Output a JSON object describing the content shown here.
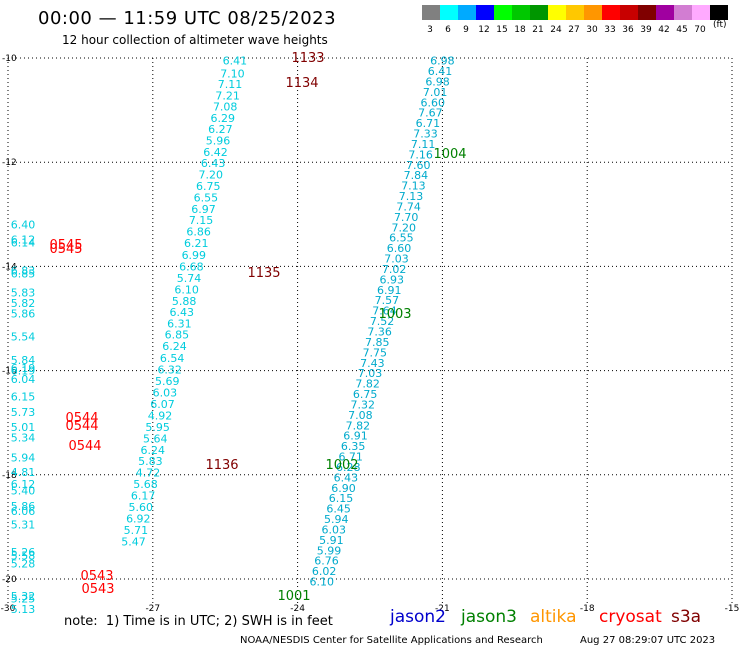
{
  "header": {
    "title": "00:00 — 11:59 UTC 08/25/2023",
    "subtitle": "12 hour collection of altimeter wave heights"
  },
  "legend": {
    "unit": "(ft)",
    "bins": [
      {
        "label": "3",
        "color": "#808080"
      },
      {
        "label": "6",
        "color": "#00ffff"
      },
      {
        "label": "9",
        "color": "#00aaff"
      },
      {
        "label": "12",
        "color": "#0000ff"
      },
      {
        "label": "15",
        "color": "#00ff00"
      },
      {
        "label": "18",
        "color": "#00c800"
      },
      {
        "label": "21",
        "color": "#009600"
      },
      {
        "label": "24",
        "color": "#ffff00"
      },
      {
        "label": "27",
        "color": "#ffc800"
      },
      {
        "label": "30",
        "color": "#ff9600"
      },
      {
        "label": "33",
        "color": "#ff0000"
      },
      {
        "label": "36",
        "color": "#c80000"
      },
      {
        "label": "39",
        "color": "#800000"
      },
      {
        "label": "42",
        "color": "#a000a0"
      },
      {
        "label": "45",
        "color": "#d27dd2"
      },
      {
        "label": "70",
        "color": "#ffaaff"
      },
      {
        "label": "",
        "color": "#000000"
      }
    ]
  },
  "axes": {
    "lat_ticks": [
      "-10",
      "-12",
      "-14",
      "-16",
      "-18",
      "-20"
    ],
    "lon_ticks": [
      "-30",
      "-27",
      "-24",
      "-21",
      "-18",
      "-15"
    ]
  },
  "tracks": [
    {
      "satellite": "jason3",
      "color": "#00ccdd",
      "label_x": 23,
      "points": [
        {
          "lat": -13.2,
          "lon": -29.2,
          "swh": "6.40"
        },
        {
          "lat": -13.48,
          "lon": -29.2,
          "swh": "6.12"
        },
        {
          "lat": -13.54,
          "lon": -29.2,
          "swh": "6.14"
        },
        {
          "lat": -14.08,
          "lon": -29.2,
          "swh": "6.83"
        },
        {
          "lat": -14.14,
          "lon": -29.2,
          "swh": "6.85"
        },
        {
          "lat": -14.5,
          "lon": -29.2,
          "swh": "5.83"
        },
        {
          "lat": -14.7,
          "lon": -29.2,
          "swh": "5.82"
        },
        {
          "lat": -14.9,
          "lon": -29.2,
          "swh": "5.86"
        },
        {
          "lat": -15.35,
          "lon": -29.1,
          "swh": "5.54"
        },
        {
          "lat": -15.8,
          "lon": -29.1,
          "swh": "5.84"
        },
        {
          "lat": -15.95,
          "lon": -29.1,
          "swh": "6.19"
        },
        {
          "lat": -16.0,
          "lon": -29.1,
          "swh": "6.19"
        },
        {
          "lat": -16.16,
          "lon": -29.1,
          "swh": "6.04"
        },
        {
          "lat": -16.5,
          "lon": -29.0,
          "swh": "6.15"
        },
        {
          "lat": -16.8,
          "lon": -29.0,
          "swh": "5.73"
        },
        {
          "lat": -17.08,
          "lon": -29.0,
          "swh": "5.01"
        },
        {
          "lat": -17.28,
          "lon": -29.0,
          "swh": "5.34"
        },
        {
          "lat": -17.67,
          "lon": -28.9,
          "swh": "5.94"
        },
        {
          "lat": -17.95,
          "lon": -28.9,
          "swh": "4.81"
        },
        {
          "lat": -18.18,
          "lon": -28.9,
          "swh": "6.12"
        },
        {
          "lat": -18.3,
          "lon": -28.9,
          "swh": "5.40"
        },
        {
          "lat": -18.6,
          "lon": -28.8,
          "swh": "5.86"
        },
        {
          "lat": -18.7,
          "lon": -28.8,
          "swh": "6.06"
        },
        {
          "lat": -18.95,
          "lon": -28.8,
          "swh": "5.31"
        },
        {
          "lat": -19.48,
          "lon": -28.7,
          "swh": "5.26"
        },
        {
          "lat": -19.55,
          "lon": -28.7,
          "swh": "5.58"
        },
        {
          "lat": -19.7,
          "lon": -28.7,
          "swh": "5.28"
        },
        {
          "lat": -20.33,
          "lon": -28.6,
          "swh": "5.32"
        },
        {
          "lat": -20.38,
          "lon": -28.6,
          "swh": "5.25"
        },
        {
          "lat": -20.58,
          "lon": -28.6,
          "swh": "5.13"
        }
      ]
    },
    {
      "satellite": "jason3-mid",
      "color": "#00ccdd",
      "points": [
        {
          "lat": -10.05,
          "lon": -25.3,
          "swh": "6.41"
        },
        {
          "lat": -10.3,
          "lon": -25.35,
          "swh": "7.10"
        },
        {
          "lat": -10.5,
          "lon": -25.4,
          "swh": "7.11"
        },
        {
          "lat": -10.72,
          "lon": -25.45,
          "swh": "7.21"
        },
        {
          "lat": -10.93,
          "lon": -25.5,
          "swh": "7.08"
        },
        {
          "lat": -11.15,
          "lon": -25.55,
          "swh": "6.29"
        },
        {
          "lat": -11.36,
          "lon": -25.6,
          "swh": "6.27"
        },
        {
          "lat": -11.58,
          "lon": -25.65,
          "swh": "5.96"
        },
        {
          "lat": -11.8,
          "lon": -25.7,
          "swh": "6.42"
        },
        {
          "lat": -12.02,
          "lon": -25.75,
          "swh": "6.43"
        },
        {
          "lat": -12.24,
          "lon": -25.8,
          "swh": "7.20"
        },
        {
          "lat": -12.46,
          "lon": -25.85,
          "swh": "6.75"
        },
        {
          "lat": -12.68,
          "lon": -25.9,
          "swh": "6.55"
        },
        {
          "lat": -12.9,
          "lon": -25.95,
          "swh": "6.97"
        },
        {
          "lat": -13.11,
          "lon": -26.0,
          "swh": "7.15"
        },
        {
          "lat": -13.33,
          "lon": -26.05,
          "swh": "6.86"
        },
        {
          "lat": -13.55,
          "lon": -26.1,
          "swh": "6.21"
        },
        {
          "lat": -13.78,
          "lon": -26.15,
          "swh": "6.99"
        },
        {
          "lat": -14.0,
          "lon": -26.2,
          "swh": "6.68"
        },
        {
          "lat": -14.22,
          "lon": -26.25,
          "swh": "5.74"
        },
        {
          "lat": -14.44,
          "lon": -26.3,
          "swh": "6.10"
        },
        {
          "lat": -14.66,
          "lon": -26.35,
          "swh": "5.88"
        },
        {
          "lat": -14.88,
          "lon": -26.4,
          "swh": "6.43"
        },
        {
          "lat": -15.1,
          "lon": -26.45,
          "swh": "6.31"
        },
        {
          "lat": -15.31,
          "lon": -26.5,
          "swh": "6.85"
        },
        {
          "lat": -15.53,
          "lon": -26.55,
          "swh": "6.24"
        },
        {
          "lat": -15.76,
          "lon": -26.6,
          "swh": "6.54"
        },
        {
          "lat": -15.98,
          "lon": -26.65,
          "swh": "6.32"
        },
        {
          "lat": -16.2,
          "lon": -26.7,
          "swh": "5.69"
        },
        {
          "lat": -16.42,
          "lon": -26.75,
          "swh": "6.03"
        },
        {
          "lat": -16.64,
          "lon": -26.8,
          "swh": "6.07"
        },
        {
          "lat": -16.86,
          "lon": -26.85,
          "swh": "4.92"
        },
        {
          "lat": -17.08,
          "lon": -26.9,
          "swh": "5.95"
        },
        {
          "lat": -17.3,
          "lon": -26.95,
          "swh": "5.64"
        },
        {
          "lat": -17.52,
          "lon": -27.0,
          "swh": "6.24"
        },
        {
          "lat": -17.74,
          "lon": -27.05,
          "swh": "5.83"
        },
        {
          "lat": -17.96,
          "lon": -27.1,
          "swh": "4.72"
        },
        {
          "lat": -18.18,
          "lon": -27.15,
          "swh": "5.68"
        },
        {
          "lat": -18.4,
          "lon": -27.2,
          "swh": "6.17"
        },
        {
          "lat": -18.62,
          "lon": -27.25,
          "swh": "5.60"
        },
        {
          "lat": -18.84,
          "lon": -27.3,
          "swh": "6.92"
        },
        {
          "lat": -19.06,
          "lon": -27.35,
          "swh": "5.71"
        },
        {
          "lat": -19.28,
          "lon": -27.4,
          "swh": "5.47"
        }
      ]
    },
    {
      "satellite": "jason3-east",
      "color": "#00aacc",
      "points": [
        {
          "lat": -10.05,
          "lon": -21.0,
          "swh": "6.98"
        },
        {
          "lat": -10.25,
          "lon": -21.05,
          "swh": "6.41"
        },
        {
          "lat": -10.45,
          "lon": -21.1,
          "swh": "6.98"
        },
        {
          "lat": -10.65,
          "lon": -21.15,
          "swh": "7.01"
        },
        {
          "lat": -10.85,
          "lon": -21.2,
          "swh": "6.60"
        },
        {
          "lat": -11.05,
          "lon": -21.25,
          "swh": "7.67"
        },
        {
          "lat": -11.25,
          "lon": -21.3,
          "swh": "6.71"
        },
        {
          "lat": -11.45,
          "lon": -21.35,
          "swh": "7.33"
        },
        {
          "lat": -11.65,
          "lon": -21.4,
          "swh": "7.11"
        },
        {
          "lat": -11.85,
          "lon": -21.45,
          "swh": "7.16"
        },
        {
          "lat": -12.05,
          "lon": -21.5,
          "swh": "7.60"
        },
        {
          "lat": -12.25,
          "lon": -21.55,
          "swh": "7.84"
        },
        {
          "lat": -12.45,
          "lon": -21.6,
          "swh": "7.13"
        },
        {
          "lat": -12.65,
          "lon": -21.65,
          "swh": "7.13"
        },
        {
          "lat": -12.85,
          "lon": -21.7,
          "swh": "7.74"
        },
        {
          "lat": -13.05,
          "lon": -21.75,
          "swh": "7.70"
        },
        {
          "lat": -13.25,
          "lon": -21.8,
          "swh": "7.20"
        },
        {
          "lat": -13.45,
          "lon": -21.85,
          "swh": "6.55"
        },
        {
          "lat": -13.65,
          "lon": -21.9,
          "swh": "6.60"
        },
        {
          "lat": -13.85,
          "lon": -21.95,
          "swh": "7.03"
        },
        {
          "lat": -14.05,
          "lon": -22.0,
          "swh": "7.02"
        },
        {
          "lat": -14.25,
          "lon": -22.05,
          "swh": "6.93"
        },
        {
          "lat": -14.45,
          "lon": -22.1,
          "swh": "6.91"
        },
        {
          "lat": -14.65,
          "lon": -22.15,
          "swh": "7.57"
        },
        {
          "lat": -14.85,
          "lon": -22.2,
          "swh": "7.64"
        },
        {
          "lat": -15.05,
          "lon": -22.25,
          "swh": "7.52"
        },
        {
          "lat": -15.25,
          "lon": -22.3,
          "swh": "7.36"
        },
        {
          "lat": -15.45,
          "lon": -22.35,
          "swh": "7.85"
        },
        {
          "lat": -15.65,
          "lon": -22.4,
          "swh": "7.75"
        },
        {
          "lat": -15.85,
          "lon": -22.45,
          "swh": "7.43"
        },
        {
          "lat": -16.05,
          "lon": -22.5,
          "swh": "7.03"
        },
        {
          "lat": -16.25,
          "lon": -22.55,
          "swh": "7.82"
        },
        {
          "lat": -16.45,
          "lon": -22.6,
          "swh": "6.75"
        },
        {
          "lat": -16.65,
          "lon": -22.65,
          "swh": "7.32"
        },
        {
          "lat": -16.85,
          "lon": -22.7,
          "swh": "7.08"
        },
        {
          "lat": -17.05,
          "lon": -22.75,
          "swh": "7.82"
        },
        {
          "lat": -17.25,
          "lon": -22.8,
          "swh": "6.91"
        },
        {
          "lat": -17.45,
          "lon": -22.85,
          "swh": "6.35"
        },
        {
          "lat": -17.65,
          "lon": -22.9,
          "swh": "6.71"
        },
        {
          "lat": -17.85,
          "lon": -22.95,
          "swh": "6.28"
        },
        {
          "lat": -18.05,
          "lon": -23.0,
          "swh": "6.43"
        },
        {
          "lat": -18.25,
          "lon": -23.05,
          "swh": "6.90"
        },
        {
          "lat": -18.45,
          "lon": -23.1,
          "swh": "6.15"
        },
        {
          "lat": -18.65,
          "lon": -23.15,
          "swh": "6.45"
        },
        {
          "lat": -18.85,
          "lon": -23.2,
          "swh": "5.94"
        },
        {
          "lat": -19.05,
          "lon": -23.25,
          "swh": "6.03"
        },
        {
          "lat": -19.25,
          "lon": -23.3,
          "swh": "5.91"
        },
        {
          "lat": -19.45,
          "lon": -23.35,
          "swh": "5.99"
        },
        {
          "lat": -19.65,
          "lon": -23.4,
          "swh": "6.76"
        },
        {
          "lat": -19.85,
          "lon": -23.45,
          "swh": "6.02"
        },
        {
          "lat": -20.05,
          "lon": -23.5,
          "swh": "6.10"
        }
      ]
    }
  ],
  "time_labels": [
    {
      "text": "1133",
      "color": "#800000"
    },
    {
      "text": "1134",
      "color": "#800000"
    },
    {
      "text": "1135",
      "color": "#800000"
    },
    {
      "text": "1136",
      "color": "#800000"
    },
    {
      "text": "1004",
      "color": "#008000"
    },
    {
      "text": "1003",
      "color": "#008000"
    },
    {
      "text": "1002",
      "color": "#008000"
    },
    {
      "text": "1001",
      "color": "#008000"
    },
    {
      "text": "0545",
      "color": "#ff0000"
    },
    {
      "text": "0545",
      "color": "#ff0000"
    },
    {
      "text": "0544",
      "color": "#ff0000"
    },
    {
      "text": "0544",
      "color": "#ff0000"
    },
    {
      "text": "0544",
      "color": "#ff0000"
    },
    {
      "text": "0543",
      "color": "#ff0000"
    },
    {
      "text": "0543",
      "color": "#ff0000"
    }
  ],
  "footer": {
    "note": "note:  1) Time is in UTC; 2) SWH is in feet",
    "satellites": [
      {
        "name": "jason2",
        "color": "#0000cc"
      },
      {
        "name": "jason3",
        "color": "#008000"
      },
      {
        "name": "altika",
        "color": "#ff9600"
      },
      {
        "name": "cryosat",
        "color": "#ff0000"
      },
      {
        "name": "s3a",
        "color": "#800000"
      }
    ],
    "credit": "NOAA/NESDIS Center for Satellite Applications and Research",
    "timestamp": "Aug 27 08:29:07 UTC 2023"
  }
}
